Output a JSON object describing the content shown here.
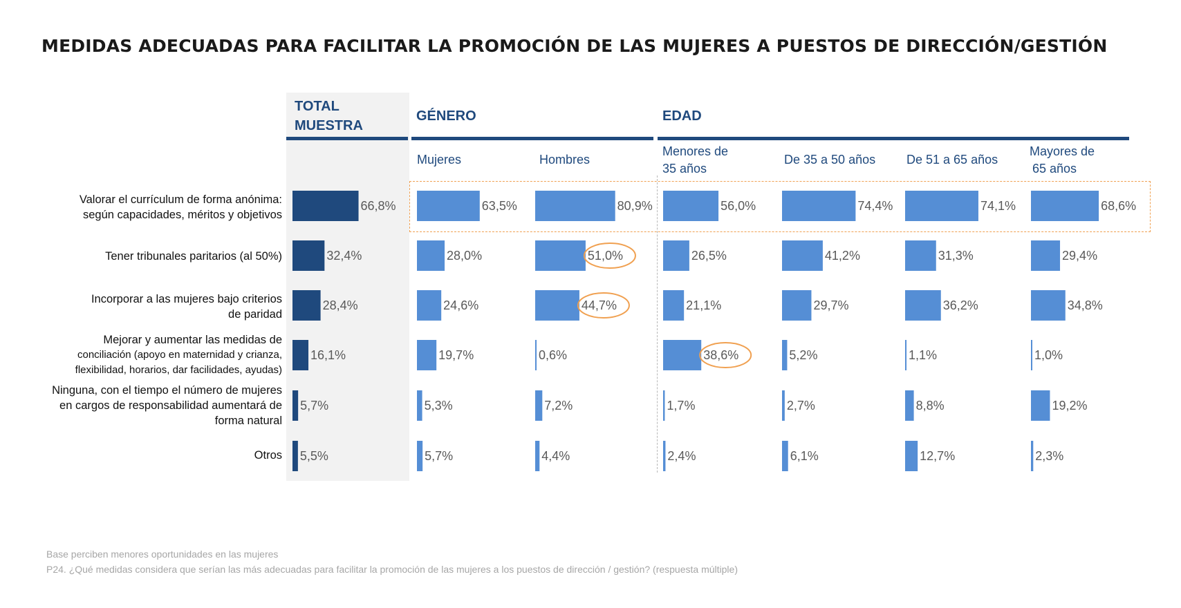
{
  "title": "MEDIDAS ADECUADAS PARA FACILITAR LA PROMOCIÓN DE LAS MUJERES A PUESTOS DE DIRECCIÓN/GESTIÓN",
  "groups": {
    "total": "TOTAL\nMUESTRA",
    "genero": "GÉNERO",
    "edad": "EDAD"
  },
  "columns": {
    "mujeres": "Mujeres",
    "hombres": "Hombres",
    "menores35_l1": "Menores de",
    "menores35_l2": "35 años",
    "de35a50": "De 35 a 50 años",
    "de51a65": "De 51 a 65 años",
    "mayores65_l1": "Mayores de",
    "mayores65_l2": "65 años"
  },
  "rows": [
    {
      "l1": "Valorar el currículum de forma anónima:",
      "l2": "según capacidades, méritos y objetivos"
    },
    {
      "l1": "Tener tribunales paritarios (al 50%)"
    },
    {
      "l1": "Incorporar a las mujeres bajo criterios",
      "l2": "de paridad"
    },
    {
      "l1": "Mejorar y aumentar las medidas de",
      "l2": "conciliación (apoyo en maternidad y crianza,",
      "l3": "flexibilidad, horarios, dar facilidades, ayudas)"
    },
    {
      "l1": "Ninguna, con el tiempo el número de mujeres",
      "l2": "en cargos de responsabilidad aumentará de",
      "l3": "forma natural"
    },
    {
      "l1": "Otros"
    }
  ],
  "chart_data": {
    "type": "bar",
    "categories": [
      "Valorar el currículum de forma anónima: según capacidades, méritos y objetivos",
      "Tener tribunales paritarios (al 50%)",
      "Incorporar a las mujeres bajo criterios de paridad",
      "Mejorar y aumentar las medidas de conciliación (apoyo en maternidad y crianza, flexibilidad, horarios, dar facilidades, ayudas)",
      "Ninguna, con el tiempo el número de mujeres en cargos de responsabilidad aumentará de forma natural",
      "Otros"
    ],
    "series": [
      {
        "name": "TOTAL MUESTRA",
        "values": [
          66.8,
          32.4,
          28.4,
          16.1,
          5.7,
          5.5
        ],
        "labels": [
          "66,8%",
          "32,4%",
          "28,4%",
          "16,1%",
          "5,7%",
          "5,5%"
        ]
      },
      {
        "name": "Mujeres",
        "values": [
          63.5,
          28.0,
          24.6,
          19.7,
          5.3,
          5.7
        ],
        "labels": [
          "63,5%",
          "28,0%",
          "24,6%",
          "19,7%",
          "5,3%",
          "5,7%"
        ]
      },
      {
        "name": "Hombres",
        "values": [
          80.9,
          51.0,
          44.7,
          0.6,
          7.2,
          4.4
        ],
        "labels": [
          "80,9%",
          "51,0%",
          "44,7%",
          "0,6%",
          "7,2%",
          "4,4%"
        ]
      },
      {
        "name": "Menores de 35 años",
        "values": [
          56.0,
          26.5,
          21.1,
          38.6,
          1.7,
          2.4
        ],
        "labels": [
          "56,0%",
          "26,5%",
          "21,1%",
          "38,6%",
          "1,7%",
          "2,4%"
        ]
      },
      {
        "name": "De 35 a 50 años",
        "values": [
          74.4,
          41.2,
          29.7,
          5.2,
          2.7,
          6.1
        ],
        "labels": [
          "74,4%",
          "41,2%",
          "29,7%",
          "5,2%",
          "2,7%",
          "6,1%"
        ]
      },
      {
        "name": "De 51 a 65 años",
        "values": [
          74.1,
          31.3,
          36.2,
          1.1,
          8.8,
          12.7
        ],
        "labels": [
          "74,1%",
          "31,3%",
          "36,2%",
          "1,1%",
          "8,8%",
          "12,7%"
        ]
      },
      {
        "name": "Mayores de 65 años",
        "values": [
          68.6,
          29.4,
          34.8,
          1.0,
          19.2,
          2.3
        ],
        "labels": [
          "68,6%",
          "29,4%",
          "34,8%",
          "1,0%",
          "19,2%",
          "2,3%"
        ]
      }
    ],
    "highlighted": [
      {
        "series": "Hombres",
        "category": "Tener tribunales paritarios (al 50%)"
      },
      {
        "series": "Hombres",
        "category": "Incorporar a las mujeres bajo criterios de paridad"
      },
      {
        "series": "Menores de 35 años",
        "category": "Mejorar y aumentar las medidas de conciliación (apoyo en maternidad y crianza, flexibilidad, horarios, dar facilidades, ayudas)"
      }
    ],
    "highlighted_row": "Valorar el currículum de forma anónima: según capacidades, méritos y objetivos",
    "colors": {
      "total": "#1f497d",
      "segment": "#558ed5",
      "label": "#595959",
      "circle": "#f0a050"
    }
  },
  "footnotes": {
    "base": "Base perciben menores oportunidades en las mujeres",
    "question": "P24. ¿Qué medidas considera que serían las más adecuadas para facilitar la promoción de las mujeres a los puestos de dirección / gestión? (respuesta múltiple)"
  }
}
